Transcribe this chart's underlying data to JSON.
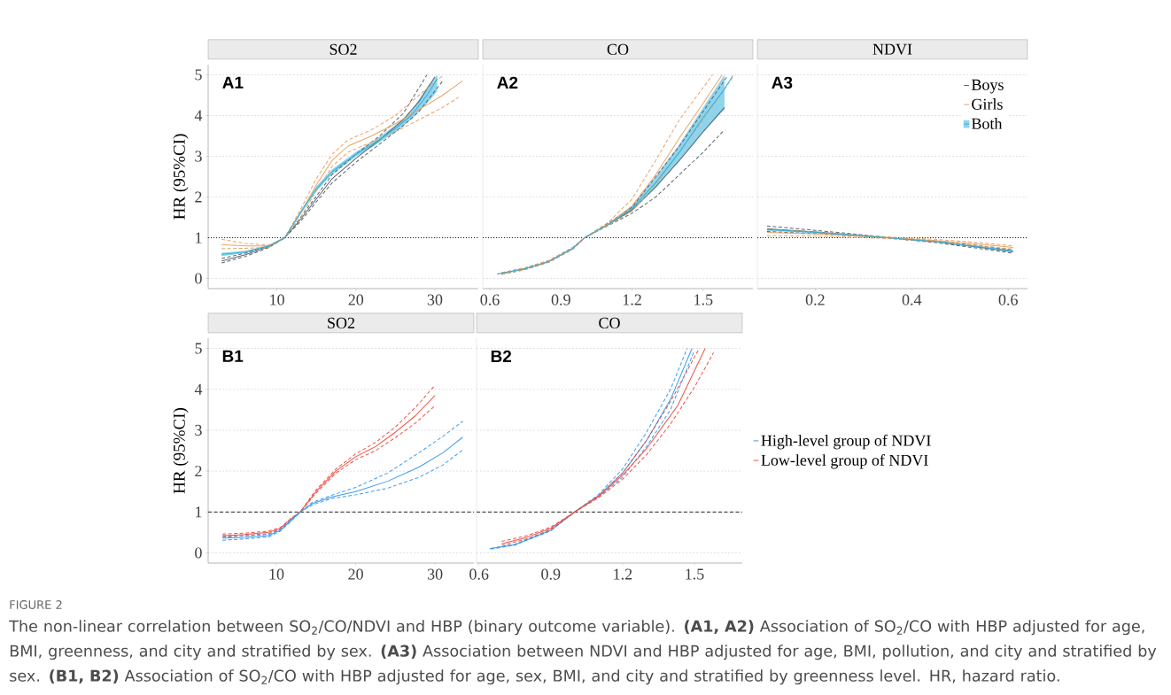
{
  "chart_data": [
    {
      "type": "line",
      "title": "SO2",
      "ylabel": "HR (95%CI)",
      "annotations": [
        "A1",
        "FIGURE 2",
        "The non-linear correlation between SO$_{2}$/CO/NDVI and HBP (binary outcome variable). **(A1, A2)** Association of SO$_{2}$/CO with HBP adjusted for age, BMI, greenness, and city and stratified by sex. **(A3)** Association between NDVI and HBP adjusted for age, BMI, pollution, and city and stratified by sex. **(B1, B2)** Association of SO$_{2}$/CO with HBP adjusted for age, sex, BMI, and city and stratified by greenness level. HR, hazard ratio."
      ],
      "xlim": [
        1.3,
        35.5
      ],
      "xticks": [
        10,
        20,
        30
      ],
      "ylim": [
        -0.25,
        5.25
      ],
      "yticks": [
        0,
        1,
        2,
        3,
        4,
        5
      ],
      "grid": "y",
      "line_style": "solid",
      "ref_lines": [
        {
          "axis": "y",
          "value": 1,
          "color": "#000000",
          "line_style": "dotted"
        }
      ],
      "series": [
        {
          "color": "#5b6670",
          "x": [
            3,
            6,
            9,
            11,
            13,
            15,
            17,
            20,
            23,
            26,
            28,
            30
          ],
          "values": [
            0.43,
            0.58,
            0.78,
            1.0,
            1.45,
            1.95,
            2.45,
            2.95,
            3.4,
            3.9,
            4.35,
            4.95
          ]
        },
        {
          "color": "#5b6670",
          "line_style": "dashed",
          "x": [
            3,
            6,
            9,
            11,
            13,
            15,
            17,
            20,
            23,
            26,
            28,
            31
          ],
          "values": [
            0.38,
            0.54,
            0.76,
            1.0,
            1.4,
            1.88,
            2.35,
            2.85,
            3.3,
            3.75,
            4.1,
            4.85
          ]
        },
        {
          "color": "#5b6670",
          "line_style": "dashed",
          "x": [
            3,
            6,
            9,
            11,
            13,
            15,
            17,
            20,
            23,
            26,
            29
          ],
          "values": [
            0.49,
            0.62,
            0.8,
            1.0,
            1.5,
            2.02,
            2.55,
            3.05,
            3.5,
            4.05,
            5.0
          ]
        },
        {
          "color": "#e8a466",
          "x": [
            3,
            6,
            9,
            11,
            13,
            15,
            17,
            19,
            22,
            25,
            28,
            31,
            33.5
          ],
          "values": [
            0.83,
            0.8,
            0.8,
            1.0,
            1.6,
            2.3,
            2.9,
            3.25,
            3.5,
            3.8,
            4.15,
            4.5,
            4.85
          ]
        },
        {
          "color": "#e8a466",
          "line_style": "dashed",
          "x": [
            3,
            6,
            9,
            11,
            13,
            15,
            17,
            19,
            22,
            25,
            28,
            31
          ],
          "values": [
            0.96,
            0.86,
            0.82,
            1.0,
            1.7,
            2.45,
            3.05,
            3.4,
            3.65,
            4.0,
            4.5,
            4.98
          ]
        },
        {
          "color": "#e8a466",
          "line_style": "dashed",
          "x": [
            3,
            6,
            9,
            11,
            13,
            15,
            17,
            19,
            22,
            25,
            28,
            31,
            33
          ],
          "values": [
            0.73,
            0.74,
            0.76,
            1.0,
            1.5,
            2.15,
            2.75,
            3.1,
            3.35,
            3.6,
            3.9,
            4.2,
            4.45
          ]
        },
        {
          "color": "#33b1dd",
          "x": [
            3,
            6,
            9,
            11,
            13,
            15,
            17,
            20,
            22,
            25,
            27,
            29,
            30.3
          ],
          "values": [
            0.59,
            0.65,
            0.8,
            1.0,
            1.62,
            2.2,
            2.62,
            3.05,
            3.28,
            3.68,
            4.0,
            4.5,
            4.9
          ],
          "lower": [
            0.55,
            0.62,
            0.78,
            1.0,
            1.57,
            2.14,
            2.56,
            2.99,
            3.22,
            3.6,
            3.9,
            4.3,
            4.6
          ],
          "upper": [
            0.63,
            0.68,
            0.82,
            1.0,
            1.67,
            2.26,
            2.68,
            3.11,
            3.34,
            3.76,
            4.1,
            4.7,
            5.0
          ]
        }
      ]
    },
    {
      "type": "line",
      "title": "CO",
      "annotations": [
        "A2"
      ],
      "xlim": [
        0.57,
        1.71
      ],
      "xticks": [
        0.6,
        0.9,
        1.2,
        1.5
      ],
      "ylim": [
        -0.25,
        5.25
      ],
      "yticks": [
        0,
        1,
        2,
        3,
        4,
        5
      ],
      "tick_labels": "x",
      "grid": "y",
      "line_style": "solid",
      "ref_lines": [
        {
          "axis": "y",
          "value": 1,
          "color": "#000000",
          "line_style": "dotted"
        }
      ],
      "series": [
        {
          "color": "#5b6670",
          "x": [
            0.65,
            0.75,
            0.85,
            0.95,
            1.0,
            1.1,
            1.2,
            1.3,
            1.4,
            1.5,
            1.59
          ],
          "values": [
            0.12,
            0.24,
            0.42,
            0.74,
            1.0,
            1.33,
            1.68,
            2.25,
            2.9,
            3.6,
            4.2
          ]
        },
        {
          "color": "#5b6670",
          "line_style": "dashed",
          "x": [
            0.65,
            0.75,
            0.85,
            0.95,
            1.0,
            1.1,
            1.2,
            1.3,
            1.4,
            1.5,
            1.59
          ],
          "values": [
            0.1,
            0.22,
            0.4,
            0.72,
            1.0,
            1.3,
            1.6,
            2.0,
            2.55,
            3.1,
            3.65
          ]
        },
        {
          "color": "#5b6670",
          "line_style": "dashed",
          "x": [
            0.65,
            0.75,
            0.85,
            0.95,
            1.0,
            1.1,
            1.2,
            1.3,
            1.4,
            1.5,
            1.6
          ],
          "values": [
            0.14,
            0.26,
            0.44,
            0.76,
            1.0,
            1.36,
            1.75,
            2.5,
            3.25,
            4.1,
            4.95
          ]
        },
        {
          "color": "#e8a466",
          "x": [
            0.65,
            0.75,
            0.85,
            0.95,
            1.0,
            1.1,
            1.2,
            1.3,
            1.4,
            1.5,
            1.58
          ],
          "values": [
            0.12,
            0.24,
            0.42,
            0.74,
            1.0,
            1.34,
            1.78,
            2.55,
            3.45,
            4.3,
            5.0
          ]
        },
        {
          "color": "#e8a466",
          "line_style": "dashed",
          "x": [
            0.65,
            0.75,
            0.85,
            0.95,
            1.0,
            1.1,
            1.2,
            1.3,
            1.4,
            1.54
          ],
          "values": [
            0.14,
            0.26,
            0.44,
            0.76,
            1.0,
            1.38,
            1.95,
            2.9,
            3.9,
            5.0
          ]
        },
        {
          "color": "#e8a466",
          "line_style": "dashed",
          "x": [
            0.65,
            0.75,
            0.85,
            0.95,
            1.0,
            1.1,
            1.2,
            1.3,
            1.4,
            1.5,
            1.63
          ],
          "values": [
            0.1,
            0.22,
            0.4,
            0.72,
            1.0,
            1.3,
            1.65,
            2.3,
            3.1,
            3.9,
            4.98
          ]
        },
        {
          "color": "#33b1dd",
          "x": [
            0.63,
            0.75,
            0.85,
            0.95,
            1.0,
            1.1,
            1.2,
            1.3,
            1.4,
            1.5,
            1.59,
            1.625
          ],
          "values": [
            0.11,
            0.24,
            0.42,
            0.74,
            1.0,
            1.33,
            1.72,
            2.35,
            3.1,
            3.95,
            4.65,
            4.98
          ],
          "lower": [
            0.1,
            0.23,
            0.41,
            0.73,
            1.0,
            1.31,
            1.66,
            2.22,
            2.9,
            3.6,
            4.15,
            null
          ],
          "upper": [
            0.12,
            0.25,
            0.43,
            0.75,
            1.0,
            1.35,
            1.78,
            2.5,
            3.3,
            4.2,
            5.0,
            null
          ]
        }
      ]
    },
    {
      "type": "line",
      "title": "NDVI",
      "annotations": [
        "A3"
      ],
      "xlim": [
        0.08,
        0.64
      ],
      "xticks": [
        0.2,
        0.4,
        0.6
      ],
      "ylim": [
        -0.25,
        5.25
      ],
      "yticks": [
        0,
        1,
        2,
        3,
        4,
        5
      ],
      "tick_labels": "x",
      "grid": "y",
      "line_style": "solid",
      "legend": "top right",
      "ref_lines": [
        {
          "axis": "y",
          "value": 1,
          "color": "#000000",
          "line_style": "dotted"
        }
      ],
      "series": [
        {
          "name": "Boys",
          "color": "#5b6670",
          "x": [
            0.1,
            0.2,
            0.3,
            0.35,
            0.45,
            0.55,
            0.61
          ],
          "values": [
            1.22,
            1.14,
            1.05,
            1.0,
            0.9,
            0.75,
            0.66
          ]
        },
        {
          "color": "#5b6670",
          "line_style": "dashed",
          "x": [
            0.1,
            0.2,
            0.3,
            0.35,
            0.45,
            0.55,
            0.61
          ],
          "values": [
            1.15,
            1.1,
            1.03,
            0.99,
            0.88,
            0.72,
            0.62
          ]
        },
        {
          "color": "#5b6670",
          "line_style": "dashed",
          "x": [
            0.1,
            0.2,
            0.3,
            0.35,
            0.45,
            0.55,
            0.61
          ],
          "values": [
            1.29,
            1.18,
            1.07,
            1.01,
            0.92,
            0.79,
            0.7
          ]
        },
        {
          "name": "Girls",
          "color": "#e8a466",
          "x": [
            0.1,
            0.2,
            0.3,
            0.35,
            0.45,
            0.55,
            0.61
          ],
          "values": [
            1.13,
            1.09,
            1.03,
            1.0,
            0.93,
            0.83,
            0.76
          ]
        },
        {
          "color": "#e8a466",
          "line_style": "dashed",
          "x": [
            0.1,
            0.2,
            0.3,
            0.35,
            0.45,
            0.55,
            0.61
          ],
          "values": [
            1.05,
            1.04,
            1.0,
            0.98,
            0.9,
            0.79,
            0.72
          ]
        },
        {
          "color": "#e8a466",
          "line_style": "dashed",
          "x": [
            0.1,
            0.2,
            0.3,
            0.35,
            0.45,
            0.55,
            0.61
          ],
          "values": [
            1.2,
            1.14,
            1.06,
            1.02,
            0.96,
            0.87,
            0.8
          ]
        },
        {
          "name": "Both",
          "color": "#33b1dd",
          "x": [
            0.1,
            0.2,
            0.3,
            0.35,
            0.45,
            0.55,
            0.61
          ],
          "values": [
            1.2,
            1.13,
            1.05,
            1.0,
            0.9,
            0.76,
            0.67
          ],
          "lower": [
            1.17,
            1.11,
            1.04,
            1.0,
            0.89,
            0.74,
            0.64
          ],
          "upper": [
            1.23,
            1.15,
            1.06,
            1.0,
            0.91,
            0.78,
            0.7
          ]
        }
      ]
    },
    {
      "type": "line",
      "title": "SO2",
      "ylabel": "HR (95%CI)",
      "annotations": [
        "B1"
      ],
      "xlim": [
        1.4,
        34.9
      ],
      "xticks": [
        10,
        20,
        30
      ],
      "ylim": [
        -0.25,
        5.25
      ],
      "yticks": [
        0,
        1,
        2,
        3,
        4,
        5
      ],
      "grid": "y",
      "line_style": "solid",
      "ref_lines": [
        {
          "axis": "y",
          "value": 1,
          "color": "#000000",
          "line_style": "dashed"
        }
      ],
      "series": [
        {
          "color": "#ef5247",
          "x": [
            3.2,
            6,
            9,
            10.5,
            12,
            13,
            15,
            17.5,
            20,
            22.5,
            25,
            27.5,
            30
          ],
          "values": [
            0.42,
            0.45,
            0.5,
            0.6,
            0.85,
            1.0,
            1.5,
            2.0,
            2.35,
            2.6,
            2.95,
            3.35,
            3.85
          ]
        },
        {
          "color": "#ef5247",
          "line_style": "dashed",
          "x": [
            3.2,
            6,
            9,
            10.5,
            12,
            13,
            15,
            17.5,
            20,
            22.5,
            25,
            27.5,
            30
          ],
          "values": [
            0.46,
            0.48,
            0.53,
            0.62,
            0.87,
            1.0,
            1.54,
            2.05,
            2.42,
            2.7,
            3.08,
            3.55,
            4.1
          ]
        },
        {
          "color": "#ef5247",
          "line_style": "dashed",
          "x": [
            3.2,
            6,
            9,
            10.5,
            12,
            13,
            15,
            17.5,
            20,
            22.5,
            25,
            27.5,
            30
          ],
          "values": [
            0.38,
            0.42,
            0.47,
            0.58,
            0.83,
            1.0,
            1.46,
            1.95,
            2.28,
            2.5,
            2.82,
            3.17,
            3.6
          ]
        },
        {
          "color": "#3a9df0",
          "x": [
            3.2,
            6,
            9,
            10.5,
            12,
            13,
            14.5,
            17,
            20,
            24,
            28,
            31,
            33.5
          ],
          "values": [
            0.36,
            0.38,
            0.42,
            0.55,
            0.82,
            1.0,
            1.2,
            1.37,
            1.5,
            1.75,
            2.1,
            2.45,
            2.83
          ]
        },
        {
          "color": "#3a9df0",
          "line_style": "dashed",
          "x": [
            3.2,
            6,
            9,
            10.5,
            12,
            13,
            14.5,
            17,
            20,
            24,
            28,
            31,
            33.5
          ],
          "values": [
            0.41,
            0.42,
            0.45,
            0.57,
            0.84,
            1.0,
            1.23,
            1.41,
            1.6,
            1.95,
            2.45,
            2.85,
            3.22
          ]
        },
        {
          "color": "#3a9df0",
          "line_style": "dashed",
          "x": [
            3.2,
            6,
            9,
            10.5,
            12,
            13,
            14.5,
            17,
            20,
            24,
            28,
            31,
            33.5
          ],
          "values": [
            0.31,
            0.34,
            0.39,
            0.53,
            0.8,
            1.0,
            1.17,
            1.33,
            1.42,
            1.58,
            1.85,
            2.15,
            2.52
          ]
        }
      ]
    },
    {
      "type": "line",
      "title": "CO",
      "annotations": [
        "B2"
      ],
      "xlim": [
        0.59,
        1.7
      ],
      "xticks": [
        0.6,
        0.9,
        1.2,
        1.5
      ],
      "ylim": [
        -0.25,
        5.25
      ],
      "yticks": [
        0,
        1,
        2,
        3,
        4,
        5
      ],
      "tick_labels": "x",
      "grid": "y",
      "line_style": "solid",
      "legend": "right",
      "ref_lines": [
        {
          "axis": "y",
          "value": 1,
          "color": "#000000",
          "line_style": "dashed"
        }
      ],
      "series": [
        {
          "name": "High-level group of NDVI",
          "color": "#3a9df0",
          "x": [
            0.645,
            0.75,
            0.9,
            1.0,
            1.1,
            1.2,
            1.3,
            1.4,
            1.49
          ],
          "values": [
            0.1,
            0.2,
            0.55,
            1.0,
            1.4,
            1.95,
            2.75,
            3.75,
            5.0
          ]
        },
        {
          "color": "#3a9df0",
          "line_style": "dashed",
          "x": [
            0.65,
            0.75,
            0.9,
            1.0,
            1.1,
            1.2,
            1.3,
            1.4,
            1.47
          ],
          "values": [
            0.11,
            0.21,
            0.56,
            1.0,
            1.43,
            2.05,
            2.95,
            4.0,
            5.0
          ]
        },
        {
          "color": "#3a9df0",
          "line_style": "dashed",
          "x": [
            0.65,
            0.75,
            0.9,
            1.0,
            1.1,
            1.2,
            1.3,
            1.4,
            1.5
          ],
          "values": [
            0.09,
            0.19,
            0.54,
            1.0,
            1.37,
            1.85,
            2.6,
            3.5,
            4.95
          ]
        },
        {
          "name": "Low-level group of NDVI",
          "color": "#ef5247",
          "x": [
            0.695,
            0.8,
            0.9,
            1.0,
            1.1,
            1.2,
            1.3,
            1.43,
            1.545
          ],
          "values": [
            0.22,
            0.38,
            0.6,
            1.0,
            1.38,
            1.9,
            2.55,
            3.6,
            5.0
          ]
        },
        {
          "color": "#ef5247",
          "line_style": "dashed",
          "x": [
            0.695,
            0.8,
            0.9,
            1.0,
            1.1,
            1.2,
            1.3,
            1.4,
            1.52
          ],
          "values": [
            0.28,
            0.42,
            0.63,
            1.0,
            1.4,
            1.95,
            2.75,
            3.7,
            5.0
          ]
        },
        {
          "color": "#ef5247",
          "line_style": "dashed",
          "x": [
            0.695,
            0.8,
            0.9,
            1.0,
            1.1,
            1.2,
            1.3,
            1.4,
            1.5,
            1.58
          ],
          "values": [
            0.18,
            0.34,
            0.57,
            1.0,
            1.35,
            1.8,
            2.4,
            3.15,
            4.05,
            4.9
          ]
        }
      ]
    }
  ]
}
